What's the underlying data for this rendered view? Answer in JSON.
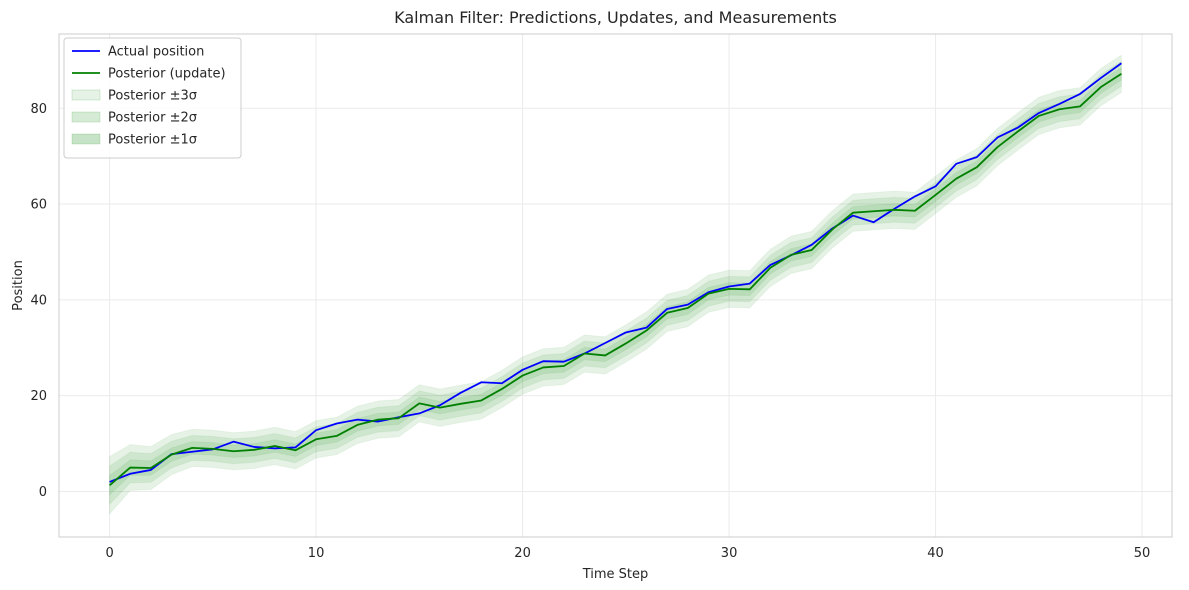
{
  "chart_data": {
    "type": "line",
    "title": "Kalman Filter: Predictions, Updates, and Measurements",
    "xlabel": "Time Step",
    "ylabel": "Position",
    "xlim": [
      -2.45,
      51.45
    ],
    "ylim": [
      -9.5,
      95.5
    ],
    "xticks": [
      0,
      10,
      20,
      30,
      40,
      50
    ],
    "yticks": [
      0,
      20,
      40,
      60,
      80
    ],
    "grid": true,
    "legend_position": "top-left",
    "x": [
      0,
      1,
      2,
      3,
      4,
      5,
      6,
      7,
      8,
      9,
      10,
      11,
      12,
      13,
      14,
      15,
      16,
      17,
      18,
      19,
      20,
      21,
      22,
      23,
      24,
      25,
      26,
      27,
      28,
      29,
      30,
      31,
      32,
      33,
      34,
      35,
      36,
      37,
      38,
      39,
      40,
      41,
      42,
      43,
      44,
      45,
      46,
      47,
      48,
      49
    ],
    "series": [
      {
        "name": "Actual position",
        "color": "#0000ff",
        "values": [
          2.0,
          3.7,
          4.5,
          7.8,
          8.3,
          8.8,
          10.4,
          9.3,
          9.0,
          9.2,
          12.8,
          14.2,
          15.0,
          14.6,
          15.5,
          16.3,
          18.0,
          20.6,
          22.8,
          22.6,
          25.4,
          27.2,
          27.1,
          28.8,
          31.0,
          33.2,
          34.2,
          38.1,
          39.0,
          41.6,
          42.8,
          43.4,
          47.3,
          49.3,
          51.5,
          54.9,
          57.6,
          56.2,
          59.0,
          61.6,
          63.7,
          68.4,
          69.8,
          73.9,
          76.0,
          79.0,
          80.9,
          83.0,
          86.3,
          89.4
        ]
      },
      {
        "name": "Posterior (update)",
        "color": "#008000",
        "values": [
          1.3,
          5.0,
          4.9,
          7.7,
          9.1,
          8.9,
          8.4,
          8.7,
          9.5,
          8.6,
          10.9,
          11.6,
          13.9,
          15.0,
          15.3,
          18.4,
          17.5,
          18.3,
          19.0,
          21.4,
          24.2,
          25.9,
          26.2,
          28.8,
          28.4,
          30.9,
          33.6,
          37.3,
          38.3,
          41.3,
          42.3,
          42.2,
          46.7,
          49.4,
          50.4,
          54.7,
          58.2,
          58.5,
          58.8,
          58.6,
          61.9,
          65.3,
          67.7,
          71.9,
          75.2,
          78.4,
          79.8,
          80.4,
          84.4,
          87.2
        ]
      }
    ],
    "uncertainty_sigma": [
      2.0,
      1.6,
      1.5,
      1.4,
      1.3,
      1.3,
      1.3,
      1.3,
      1.3,
      1.3,
      1.3,
      1.3,
      1.3,
      1.3,
      1.3,
      1.3,
      1.3,
      1.3,
      1.3,
      1.3,
      1.3,
      1.3,
      1.3,
      1.3,
      1.3,
      1.3,
      1.3,
      1.3,
      1.3,
      1.3,
      1.3,
      1.3,
      1.3,
      1.3,
      1.3,
      1.3,
      1.3,
      1.3,
      1.3,
      1.3,
      1.3,
      1.3,
      1.3,
      1.3,
      1.3,
      1.3,
      1.3,
      1.3,
      1.3,
      1.3
    ],
    "bands": [
      {
        "name": "Posterior ±3σ",
        "k": 3,
        "color": "#008000",
        "opacity": 0.1
      },
      {
        "name": "Posterior ±2σ",
        "k": 2,
        "color": "#008000",
        "opacity": 0.1
      },
      {
        "name": "Posterior ±1σ",
        "k": 1,
        "color": "#008000",
        "opacity": 0.1
      }
    ]
  }
}
